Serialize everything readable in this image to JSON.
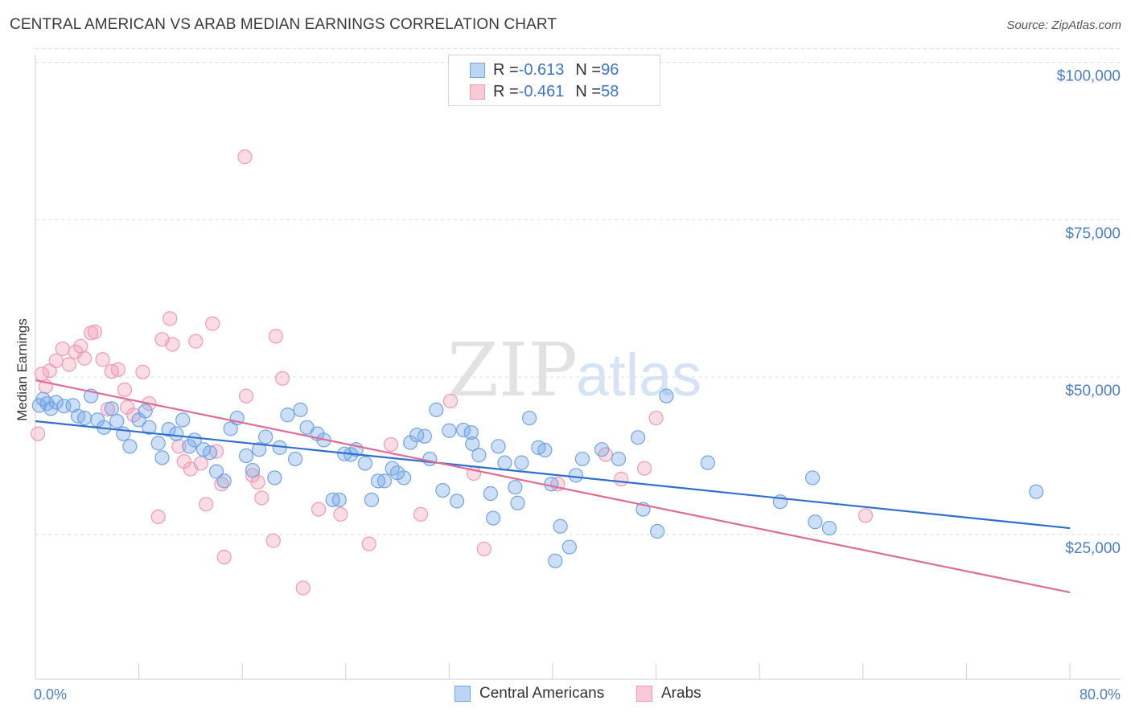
{
  "title": "CENTRAL AMERICAN VS ARAB MEDIAN EARNINGS CORRELATION CHART",
  "source": "Source: ZipAtlas.com",
  "watermark": {
    "zip": "ZIP",
    "atlas": "atlas"
  },
  "colors": {
    "blue": "#6fa3e6",
    "blue_line": "#2f6fd1",
    "pink": "#f09ab5",
    "pink_line": "#e06b93",
    "axis_text": "#4a7fc8"
  },
  "legend": {
    "rows": [
      {
        "r_label": "R = ",
        "r_value": "-0.613",
        "n_label": "N = ",
        "n_value": "96"
      },
      {
        "r_label": "R = ",
        "r_value": "-0.461",
        "n_label": "N = ",
        "n_value": "58"
      }
    ]
  },
  "bottom_legend": {
    "blue": "Central Americans",
    "pink": "Arabs"
  },
  "chart_data": {
    "type": "scatter",
    "title": "CENTRAL AMERICAN VS ARAB MEDIAN EARNINGS CORRELATION CHART",
    "xlabel": "",
    "ylabel": "Median Earnings",
    "xlim": [
      0,
      80
    ],
    "ylim": [
      2000,
      102000
    ],
    "x_tick_labels": [
      "0.0%",
      "80.0%"
    ],
    "y_ticks": [
      25000,
      50000,
      75000,
      100000
    ],
    "y_tick_labels": [
      "$25,000",
      "$50,000",
      "$75,000",
      "$100,000"
    ],
    "grid": "horizontal dashed",
    "legend_position": "top-center",
    "series": [
      {
        "name": "Central Americans",
        "color": "#6fa3e6",
        "r": -0.613,
        "n": 96,
        "trend": {
          "x": [
            0,
            80
          ],
          "y": [
            43000,
            26000
          ]
        },
        "points": [
          [
            0.3,
            45500
          ],
          [
            0.6,
            46500
          ],
          [
            0.9,
            45800
          ],
          [
            1.2,
            45000
          ],
          [
            1.6,
            46000
          ],
          [
            2.2,
            45400
          ],
          [
            2.9,
            45500
          ],
          [
            3.3,
            43800
          ],
          [
            3.8,
            43500
          ],
          [
            4.3,
            47000
          ],
          [
            4.8,
            43200
          ],
          [
            5.3,
            42000
          ],
          [
            5.9,
            45000
          ],
          [
            6.3,
            43000
          ],
          [
            6.8,
            41000
          ],
          [
            7.3,
            39000
          ],
          [
            8.0,
            43200
          ],
          [
            8.5,
            44600
          ],
          [
            8.8,
            42000
          ],
          [
            9.5,
            39500
          ],
          [
            9.8,
            37200
          ],
          [
            10.3,
            41700
          ],
          [
            10.9,
            41000
          ],
          [
            11.4,
            43200
          ],
          [
            11.9,
            39000
          ],
          [
            12.3,
            40000
          ],
          [
            13.0,
            38500
          ],
          [
            13.5,
            38000
          ],
          [
            14.0,
            35000
          ],
          [
            14.6,
            33500
          ],
          [
            15.1,
            41800
          ],
          [
            15.6,
            43500
          ],
          [
            16.3,
            37500
          ],
          [
            16.8,
            35200
          ],
          [
            17.3,
            38500
          ],
          [
            17.8,
            40500
          ],
          [
            18.5,
            34000
          ],
          [
            18.9,
            38800
          ],
          [
            19.5,
            44000
          ],
          [
            20.1,
            37000
          ],
          [
            20.5,
            44800
          ],
          [
            21.0,
            42000
          ],
          [
            21.8,
            41000
          ],
          [
            22.3,
            40000
          ],
          [
            23.0,
            30500
          ],
          [
            23.5,
            30500
          ],
          [
            23.9,
            37800
          ],
          [
            24.4,
            37700
          ],
          [
            24.8,
            38500
          ],
          [
            25.5,
            36300
          ],
          [
            26.0,
            30500
          ],
          [
            26.5,
            33500
          ],
          [
            27.0,
            33500
          ],
          [
            27.6,
            35500
          ],
          [
            28.0,
            34800
          ],
          [
            28.5,
            34000
          ],
          [
            29.0,
            39600
          ],
          [
            29.5,
            40800
          ],
          [
            30.1,
            40600
          ],
          [
            30.5,
            37000
          ],
          [
            31.0,
            44800
          ],
          [
            31.5,
            32000
          ],
          [
            32.0,
            41500
          ],
          [
            32.6,
            30300
          ],
          [
            33.1,
            41600
          ],
          [
            33.7,
            41200
          ],
          [
            33.8,
            39400
          ],
          [
            34.3,
            37600
          ],
          [
            35.2,
            31500
          ],
          [
            35.4,
            27600
          ],
          [
            35.8,
            39000
          ],
          [
            36.3,
            36400
          ],
          [
            37.1,
            32500
          ],
          [
            37.3,
            30000
          ],
          [
            37.6,
            36400
          ],
          [
            38.2,
            43500
          ],
          [
            38.9,
            38800
          ],
          [
            39.4,
            38400
          ],
          [
            39.9,
            33000
          ],
          [
            40.2,
            20800
          ],
          [
            40.6,
            26300
          ],
          [
            41.3,
            23000
          ],
          [
            41.8,
            34400
          ],
          [
            42.3,
            37000
          ],
          [
            43.8,
            38500
          ],
          [
            45.1,
            37000
          ],
          [
            46.6,
            40400
          ],
          [
            47.0,
            29000
          ],
          [
            48.1,
            25500
          ],
          [
            48.8,
            47000
          ],
          [
            52.0,
            36400
          ],
          [
            57.6,
            30200
          ],
          [
            60.1,
            34000
          ],
          [
            60.3,
            27000
          ],
          [
            61.4,
            26000
          ],
          [
            77.4,
            31800
          ]
        ]
      },
      {
        "name": "Arabs",
        "color": "#f09ab5",
        "r": -0.461,
        "n": 58,
        "trend": {
          "x": [
            0,
            80
          ],
          "y": [
            49500,
            15800
          ]
        },
        "points": [
          [
            0.5,
            50500
          ],
          [
            0.8,
            48500
          ],
          [
            1.1,
            51000
          ],
          [
            1.6,
            52600
          ],
          [
            2.1,
            54500
          ],
          [
            2.6,
            52000
          ],
          [
            3.1,
            54000
          ],
          [
            3.5,
            54900
          ],
          [
            3.8,
            53000
          ],
          [
            4.3,
            57000
          ],
          [
            4.6,
            57200
          ],
          [
            5.2,
            52800
          ],
          [
            5.6,
            44900
          ],
          [
            5.9,
            50900
          ],
          [
            6.4,
            51200
          ],
          [
            6.9,
            48000
          ],
          [
            7.1,
            45200
          ],
          [
            7.6,
            44000
          ],
          [
            8.3,
            50800
          ],
          [
            8.8,
            45800
          ],
          [
            9.5,
            27800
          ],
          [
            9.8,
            56000
          ],
          [
            10.4,
            59300
          ],
          [
            10.6,
            55200
          ],
          [
            11.1,
            39000
          ],
          [
            11.5,
            36600
          ],
          [
            12.0,
            35400
          ],
          [
            12.4,
            55700
          ],
          [
            12.8,
            36300
          ],
          [
            13.2,
            29800
          ],
          [
            13.7,
            58500
          ],
          [
            14.0,
            38200
          ],
          [
            14.4,
            33000
          ],
          [
            14.6,
            21400
          ],
          [
            16.2,
            85000
          ],
          [
            16.3,
            47000
          ],
          [
            16.8,
            34400
          ],
          [
            17.2,
            33300
          ],
          [
            17.5,
            30800
          ],
          [
            18.4,
            24000
          ],
          [
            18.6,
            56500
          ],
          [
            19.1,
            49800
          ],
          [
            20.7,
            16500
          ],
          [
            21.9,
            29000
          ],
          [
            23.6,
            28200
          ],
          [
            25.8,
            23500
          ],
          [
            27.5,
            39300
          ],
          [
            29.8,
            28200
          ],
          [
            32.1,
            46200
          ],
          [
            33.9,
            34700
          ],
          [
            34.7,
            22700
          ],
          [
            40.4,
            33000
          ],
          [
            44.1,
            37700
          ],
          [
            45.3,
            33800
          ],
          [
            47.1,
            35500
          ],
          [
            48.0,
            43500
          ],
          [
            64.2,
            28000
          ],
          [
            0.2,
            41000
          ]
        ]
      }
    ]
  }
}
